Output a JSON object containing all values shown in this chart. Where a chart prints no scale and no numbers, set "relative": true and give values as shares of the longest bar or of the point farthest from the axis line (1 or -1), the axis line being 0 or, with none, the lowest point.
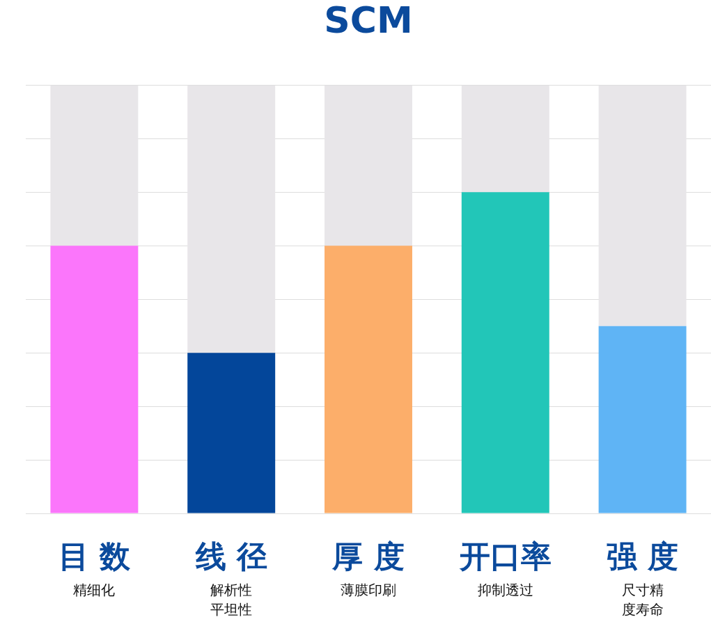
{
  "chart_data": {
    "type": "bar",
    "title": "SCM",
    "relative": true,
    "stacked": true,
    "grid": "y",
    "categories": [
      "目 数",
      "线 径",
      "厚 度",
      "开口率",
      "强 度"
    ],
    "annotations": [
      "精细化",
      "解析性平坦性",
      "薄膜印刷",
      "抑制透过",
      "尺寸精度寿命"
    ],
    "series": [
      {
        "colors": [
          "#fb76fb",
          "#03469a",
          "#fcae6a",
          "#22c6b8",
          "#5fb4f5"
        ],
        "values": [
          0.625,
          0.375,
          0.625,
          0.75,
          0.4375
        ]
      },
      {
        "color": "#e8e6e9",
        "values": [
          0.375,
          0.625,
          0.375,
          0.25,
          0.5625
        ]
      }
    ]
  }
}
